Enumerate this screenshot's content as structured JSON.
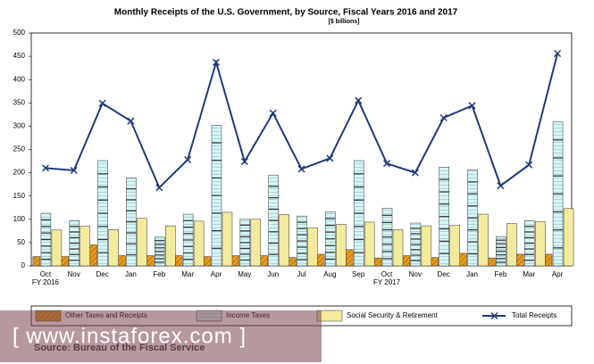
{
  "chart_data": {
    "type": "bar",
    "title": "Monthly Receipts of the U.S. Government, by Source,  Fiscal Years 2016 and 2017",
    "subtitle": "[$ billions]",
    "categories": [
      "Oct",
      "Nov",
      "Dec",
      "Jan",
      "Feb",
      "Mar",
      "Apr",
      "May",
      "Jun",
      "Jul",
      "Aug",
      "Sep",
      "Oct",
      "Nov",
      "Dec",
      "Jan",
      "Feb",
      "Mar",
      "Apr"
    ],
    "annotations": [
      "FY 2016",
      "FY 2017"
    ],
    "series": [
      {
        "name": "Other Taxes and Receipts",
        "type": "bar",
        "color": "#e89a1e",
        "values": [
          20,
          20,
          45,
          22,
          22,
          22,
          20,
          22,
          22,
          18,
          25,
          35,
          17,
          22,
          18,
          27,
          17,
          25,
          25
        ]
      },
      {
        "name": "Income Taxes",
        "type": "bar",
        "color": "#d2f6f6",
        "values": [
          113,
          97,
          226,
          189,
          62,
          111,
          302,
          100,
          195,
          107,
          116,
          226,
          124,
          92,
          212,
          206,
          63,
          97,
          309
        ]
      },
      {
        "name": "Social Security & Retirement",
        "type": "bar",
        "color": "#f7f0a6",
        "values": [
          77,
          85,
          78,
          102,
          86,
          96,
          115,
          100,
          110,
          82,
          89,
          94,
          78,
          86,
          87,
          111,
          91,
          95,
          123
        ]
      },
      {
        "name": "Total Receipts",
        "type": "line",
        "color": "#1f3a78",
        "values": [
          210,
          205,
          349,
          311,
          168,
          228,
          437,
          224,
          328,
          208,
          231,
          355,
          220,
          200,
          318,
          344,
          172,
          217,
          456
        ]
      }
    ],
    "ylim": [
      0,
      500
    ],
    "yticks": [
      0,
      50,
      100,
      150,
      200,
      250,
      300,
      350,
      400,
      450,
      500
    ],
    "grid": false,
    "legend": "bottom",
    "source": "Source: Bureau of the Fiscal Service",
    "watermark": "[ www.instaforex.com ]"
  }
}
